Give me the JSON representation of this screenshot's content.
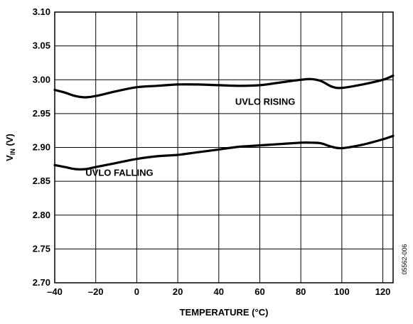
{
  "chart_data": {
    "type": "line",
    "xlabel": "TEMPERATURE (°C)",
    "ylabel_main": "V",
    "ylabel_sub": "IN",
    "ylabel_unit": " (V)",
    "xlim": [
      -40,
      125
    ],
    "ylim": [
      2.7,
      3.1
    ],
    "x_ticks": [
      -40,
      -20,
      0,
      20,
      40,
      60,
      80,
      100,
      120
    ],
    "x_tick_labels": [
      "–40",
      "–20",
      "0",
      "20",
      "40",
      "60",
      "80",
      "100",
      "120"
    ],
    "y_ticks": [
      2.7,
      2.75,
      2.8,
      2.85,
      2.9,
      2.95,
      3.0,
      3.05,
      3.1
    ],
    "y_tick_labels": [
      "2.70",
      "2.75",
      "2.80",
      "2.85",
      "2.90",
      "2.95",
      "3.00",
      "3.05",
      "3.10"
    ],
    "grid": true,
    "series": [
      {
        "name": "UVLO RISING",
        "x": [
          -40,
          -35,
          -30,
          -25,
          -20,
          -10,
          0,
          10,
          20,
          30,
          40,
          50,
          60,
          70,
          80,
          85,
          90,
          95,
          100,
          110,
          120,
          125
        ],
        "values": [
          2.985,
          2.981,
          2.976,
          2.974,
          2.976,
          2.983,
          2.989,
          2.991,
          2.993,
          2.993,
          2.992,
          2.991,
          2.992,
          2.996,
          3.0,
          3.001,
          2.998,
          2.99,
          2.988,
          2.993,
          3.0,
          3.006
        ]
      },
      {
        "name": "UVLO FALLING",
        "x": [
          -40,
          -35,
          -30,
          -25,
          -20,
          -10,
          0,
          10,
          20,
          30,
          40,
          50,
          60,
          70,
          80,
          85,
          90,
          95,
          100,
          110,
          120,
          125
        ],
        "values": [
          2.874,
          2.871,
          2.868,
          2.868,
          2.871,
          2.877,
          2.883,
          2.887,
          2.889,
          2.893,
          2.897,
          2.901,
          2.903,
          2.905,
          2.907,
          2.907,
          2.906,
          2.901,
          2.899,
          2.904,
          2.912,
          2.917
        ]
      }
    ],
    "annotations": [
      "UVLO RISING",
      "UVLO FALLING"
    ],
    "figure_code": "05562-006"
  }
}
